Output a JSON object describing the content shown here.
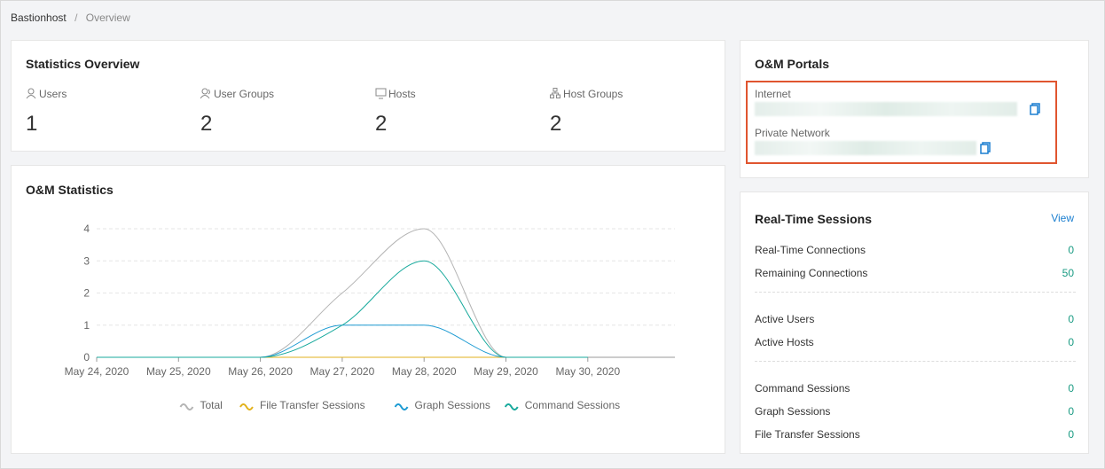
{
  "breadcrumb": {
    "items": [
      "Bastionhost",
      "Overview"
    ],
    "separator": "/"
  },
  "statistics_overview": {
    "title": "Statistics Overview",
    "items": [
      {
        "label": "Users",
        "value": 1
      },
      {
        "label": "User Groups",
        "value": 2
      },
      {
        "label": "Hosts",
        "value": 2
      },
      {
        "label": "Host Groups",
        "value": 2
      }
    ]
  },
  "om_portals": {
    "title": "O&M Portals",
    "internet": "Internet",
    "private_network": "Private Network"
  },
  "realtime_sessions": {
    "title": "Real-Time Sessions",
    "link": "View",
    "groups": [
      [
        {
          "label": "Real-Time Connections",
          "value": 0
        },
        {
          "label": "Remaining Connections",
          "value": 50
        }
      ],
      [
        {
          "label": "Active Users",
          "value": 0
        },
        {
          "label": "Active Hosts",
          "value": 0
        }
      ],
      [
        {
          "label": "Command Sessions",
          "value": 0
        },
        {
          "label": "Graph Sessions",
          "value": 0
        },
        {
          "label": "File Transfer Sessions",
          "value": 0
        }
      ]
    ]
  },
  "chart_data": {
    "type": "line",
    "title": "O&M Statistics",
    "categories": [
      "May 24, 2020",
      "May 25, 2020",
      "May 26, 2020",
      "May 27, 2020",
      "May 28, 2020",
      "May 29, 2020",
      "May 30, 2020"
    ],
    "series": [
      {
        "name": "Total",
        "color": "#b4b4b4",
        "values": [
          0,
          0,
          0,
          2,
          4,
          0,
          0
        ]
      },
      {
        "name": "File Transfer Sessions",
        "color": "#e2b21c",
        "values": [
          0,
          0,
          0,
          0,
          0,
          0,
          0
        ]
      },
      {
        "name": "Graph Sessions",
        "color": "#1b9ad2",
        "values": [
          0,
          0,
          0,
          1,
          1,
          0,
          0
        ]
      },
      {
        "name": "Command Sessions",
        "color": "#17a99c",
        "values": [
          0,
          0,
          0,
          1,
          3,
          0,
          0
        ]
      }
    ],
    "ylim": [
      0,
      4
    ],
    "yticks": [
      0,
      1,
      2,
      3,
      4
    ],
    "grid": true
  }
}
